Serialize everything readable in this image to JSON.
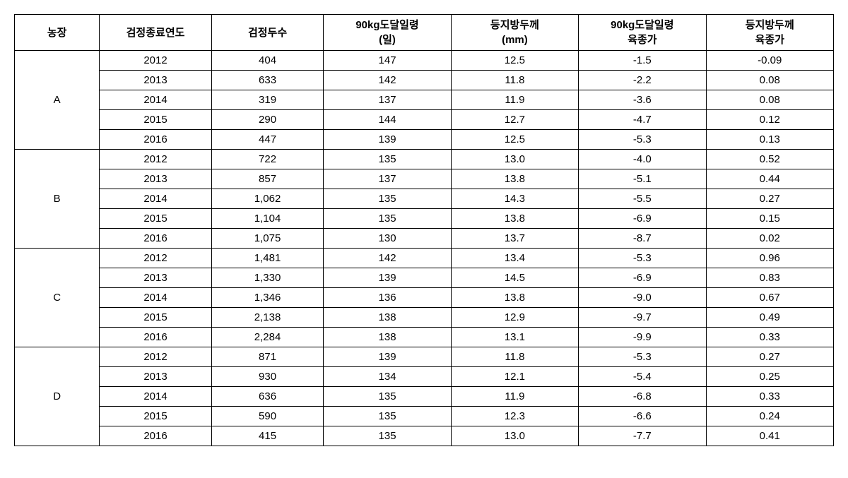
{
  "table": {
    "headers": {
      "farm": "농장",
      "year": "검정종료연도",
      "count": "검정두수",
      "days_line1": "90kg도달일령",
      "days_line2": "(일)",
      "thickness_line1": "등지방두께",
      "thickness_line2": "(mm)",
      "bv1_line1": "90kg도달일령",
      "bv1_line2": "육종가",
      "bv2_line1": "등지방두께",
      "bv2_line2": "육종가"
    },
    "groups": [
      {
        "farm": "A",
        "rows": [
          {
            "year": "2012",
            "count": "404",
            "days": "147",
            "thickness": "12.5",
            "bv1": "-1.5",
            "bv2": "-0.09"
          },
          {
            "year": "2013",
            "count": "633",
            "days": "142",
            "thickness": "11.8",
            "bv1": "-2.2",
            "bv2": "0.08"
          },
          {
            "year": "2014",
            "count": "319",
            "days": "137",
            "thickness": "11.9",
            "bv1": "-3.6",
            "bv2": "0.08"
          },
          {
            "year": "2015",
            "count": "290",
            "days": "144",
            "thickness": "12.7",
            "bv1": "-4.7",
            "bv2": "0.12"
          },
          {
            "year": "2016",
            "count": "447",
            "days": "139",
            "thickness": "12.5",
            "bv1": "-5.3",
            "bv2": "0.13"
          }
        ]
      },
      {
        "farm": "B",
        "rows": [
          {
            "year": "2012",
            "count": "722",
            "days": "135",
            "thickness": "13.0",
            "bv1": "-4.0",
            "bv2": "0.52"
          },
          {
            "year": "2013",
            "count": "857",
            "days": "137",
            "thickness": "13.8",
            "bv1": "-5.1",
            "bv2": "0.44"
          },
          {
            "year": "2014",
            "count": "1,062",
            "days": "135",
            "thickness": "14.3",
            "bv1": "-5.5",
            "bv2": "0.27"
          },
          {
            "year": "2015",
            "count": "1,104",
            "days": "135",
            "thickness": "13.8",
            "bv1": "-6.9",
            "bv2": "0.15"
          },
          {
            "year": "2016",
            "count": "1,075",
            "days": "130",
            "thickness": "13.7",
            "bv1": "-8.7",
            "bv2": "0.02"
          }
        ]
      },
      {
        "farm": "C",
        "rows": [
          {
            "year": "2012",
            "count": "1,481",
            "days": "142",
            "thickness": "13.4",
            "bv1": "-5.3",
            "bv2": "0.96"
          },
          {
            "year": "2013",
            "count": "1,330",
            "days": "139",
            "thickness": "14.5",
            "bv1": "-6.9",
            "bv2": "0.83"
          },
          {
            "year": "2014",
            "count": "1,346",
            "days": "136",
            "thickness": "13.8",
            "bv1": "-9.0",
            "bv2": "0.67"
          },
          {
            "year": "2015",
            "count": "2,138",
            "days": "138",
            "thickness": "12.9",
            "bv1": "-9.7",
            "bv2": "0.49"
          },
          {
            "year": "2016",
            "count": "2,284",
            "days": "138",
            "thickness": "13.1",
            "bv1": "-9.9",
            "bv2": "0.33"
          }
        ]
      },
      {
        "farm": "D",
        "rows": [
          {
            "year": "2012",
            "count": "871",
            "days": "139",
            "thickness": "11.8",
            "bv1": "-5.3",
            "bv2": "0.27"
          },
          {
            "year": "2013",
            "count": "930",
            "days": "134",
            "thickness": "12.1",
            "bv1": "-5.4",
            "bv2": "0.25"
          },
          {
            "year": "2014",
            "count": "636",
            "days": "135",
            "thickness": "11.9",
            "bv1": "-6.8",
            "bv2": "0.33"
          },
          {
            "year": "2015",
            "count": "590",
            "days": "135",
            "thickness": "12.3",
            "bv1": "-6.6",
            "bv2": "0.24"
          },
          {
            "year": "2016",
            "count": "415",
            "days": "135",
            "thickness": "13.0",
            "bv1": "-7.7",
            "bv2": "0.41"
          }
        ]
      }
    ]
  }
}
